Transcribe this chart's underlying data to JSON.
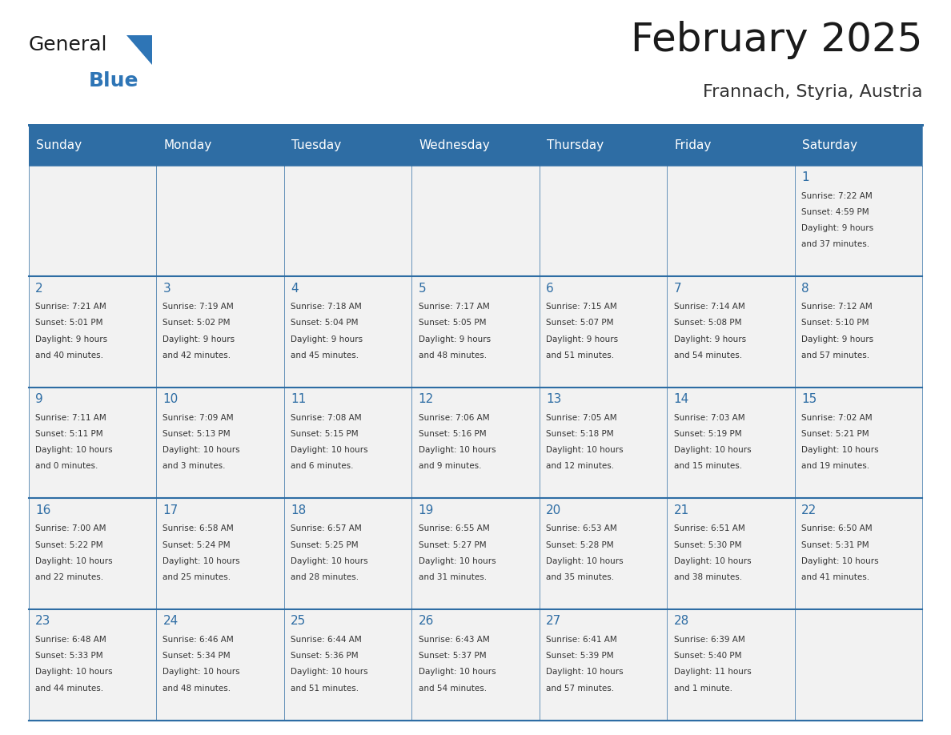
{
  "title": "February 2025",
  "subtitle": "Frannach, Styria, Austria",
  "days_of_week": [
    "Sunday",
    "Monday",
    "Tuesday",
    "Wednesday",
    "Thursday",
    "Friday",
    "Saturday"
  ],
  "header_bg": "#2E6DA4",
  "header_text": "#FFFFFF",
  "cell_bg_light": "#F2F2F2",
  "cell_bg_white": "#FFFFFF",
  "border_color": "#2E6DA4",
  "title_color": "#1a1a1a",
  "subtitle_color": "#333333",
  "day_num_color": "#2E6DA4",
  "cell_text_color": "#333333",
  "logo_general_color": "#1a1a1a",
  "logo_blue_color": "#2E75B6",
  "calendar_data": [
    [
      null,
      null,
      null,
      null,
      null,
      null,
      {
        "day": 1,
        "sunrise": "7:22 AM",
        "sunset": "4:59 PM",
        "daylight": "9 hours and 37 minutes."
      }
    ],
    [
      {
        "day": 2,
        "sunrise": "7:21 AM",
        "sunset": "5:01 PM",
        "daylight": "9 hours and 40 minutes."
      },
      {
        "day": 3,
        "sunrise": "7:19 AM",
        "sunset": "5:02 PM",
        "daylight": "9 hours and 42 minutes."
      },
      {
        "day": 4,
        "sunrise": "7:18 AM",
        "sunset": "5:04 PM",
        "daylight": "9 hours and 45 minutes."
      },
      {
        "day": 5,
        "sunrise": "7:17 AM",
        "sunset": "5:05 PM",
        "daylight": "9 hours and 48 minutes."
      },
      {
        "day": 6,
        "sunrise": "7:15 AM",
        "sunset": "5:07 PM",
        "daylight": "9 hours and 51 minutes."
      },
      {
        "day": 7,
        "sunrise": "7:14 AM",
        "sunset": "5:08 PM",
        "daylight": "9 hours and 54 minutes."
      },
      {
        "day": 8,
        "sunrise": "7:12 AM",
        "sunset": "5:10 PM",
        "daylight": "9 hours and 57 minutes."
      }
    ],
    [
      {
        "day": 9,
        "sunrise": "7:11 AM",
        "sunset": "5:11 PM",
        "daylight": "10 hours and 0 minutes."
      },
      {
        "day": 10,
        "sunrise": "7:09 AM",
        "sunset": "5:13 PM",
        "daylight": "10 hours and 3 minutes."
      },
      {
        "day": 11,
        "sunrise": "7:08 AM",
        "sunset": "5:15 PM",
        "daylight": "10 hours and 6 minutes."
      },
      {
        "day": 12,
        "sunrise": "7:06 AM",
        "sunset": "5:16 PM",
        "daylight": "10 hours and 9 minutes."
      },
      {
        "day": 13,
        "sunrise": "7:05 AM",
        "sunset": "5:18 PM",
        "daylight": "10 hours and 12 minutes."
      },
      {
        "day": 14,
        "sunrise": "7:03 AM",
        "sunset": "5:19 PM",
        "daylight": "10 hours and 15 minutes."
      },
      {
        "day": 15,
        "sunrise": "7:02 AM",
        "sunset": "5:21 PM",
        "daylight": "10 hours and 19 minutes."
      }
    ],
    [
      {
        "day": 16,
        "sunrise": "7:00 AM",
        "sunset": "5:22 PM",
        "daylight": "10 hours and 22 minutes."
      },
      {
        "day": 17,
        "sunrise": "6:58 AM",
        "sunset": "5:24 PM",
        "daylight": "10 hours and 25 minutes."
      },
      {
        "day": 18,
        "sunrise": "6:57 AM",
        "sunset": "5:25 PM",
        "daylight": "10 hours and 28 minutes."
      },
      {
        "day": 19,
        "sunrise": "6:55 AM",
        "sunset": "5:27 PM",
        "daylight": "10 hours and 31 minutes."
      },
      {
        "day": 20,
        "sunrise": "6:53 AM",
        "sunset": "5:28 PM",
        "daylight": "10 hours and 35 minutes."
      },
      {
        "day": 21,
        "sunrise": "6:51 AM",
        "sunset": "5:30 PM",
        "daylight": "10 hours and 38 minutes."
      },
      {
        "day": 22,
        "sunrise": "6:50 AM",
        "sunset": "5:31 PM",
        "daylight": "10 hours and 41 minutes."
      }
    ],
    [
      {
        "day": 23,
        "sunrise": "6:48 AM",
        "sunset": "5:33 PM",
        "daylight": "10 hours and 44 minutes."
      },
      {
        "day": 24,
        "sunrise": "6:46 AM",
        "sunset": "5:34 PM",
        "daylight": "10 hours and 48 minutes."
      },
      {
        "day": 25,
        "sunrise": "6:44 AM",
        "sunset": "5:36 PM",
        "daylight": "10 hours and 51 minutes."
      },
      {
        "day": 26,
        "sunrise": "6:43 AM",
        "sunset": "5:37 PM",
        "daylight": "10 hours and 54 minutes."
      },
      {
        "day": 27,
        "sunrise": "6:41 AM",
        "sunset": "5:39 PM",
        "daylight": "10 hours and 57 minutes."
      },
      {
        "day": 28,
        "sunrise": "6:39 AM",
        "sunset": "5:40 PM",
        "daylight": "11 hours and 1 minute."
      },
      null
    ]
  ],
  "num_weeks": 5,
  "fig_width": 11.88,
  "fig_height": 9.18
}
